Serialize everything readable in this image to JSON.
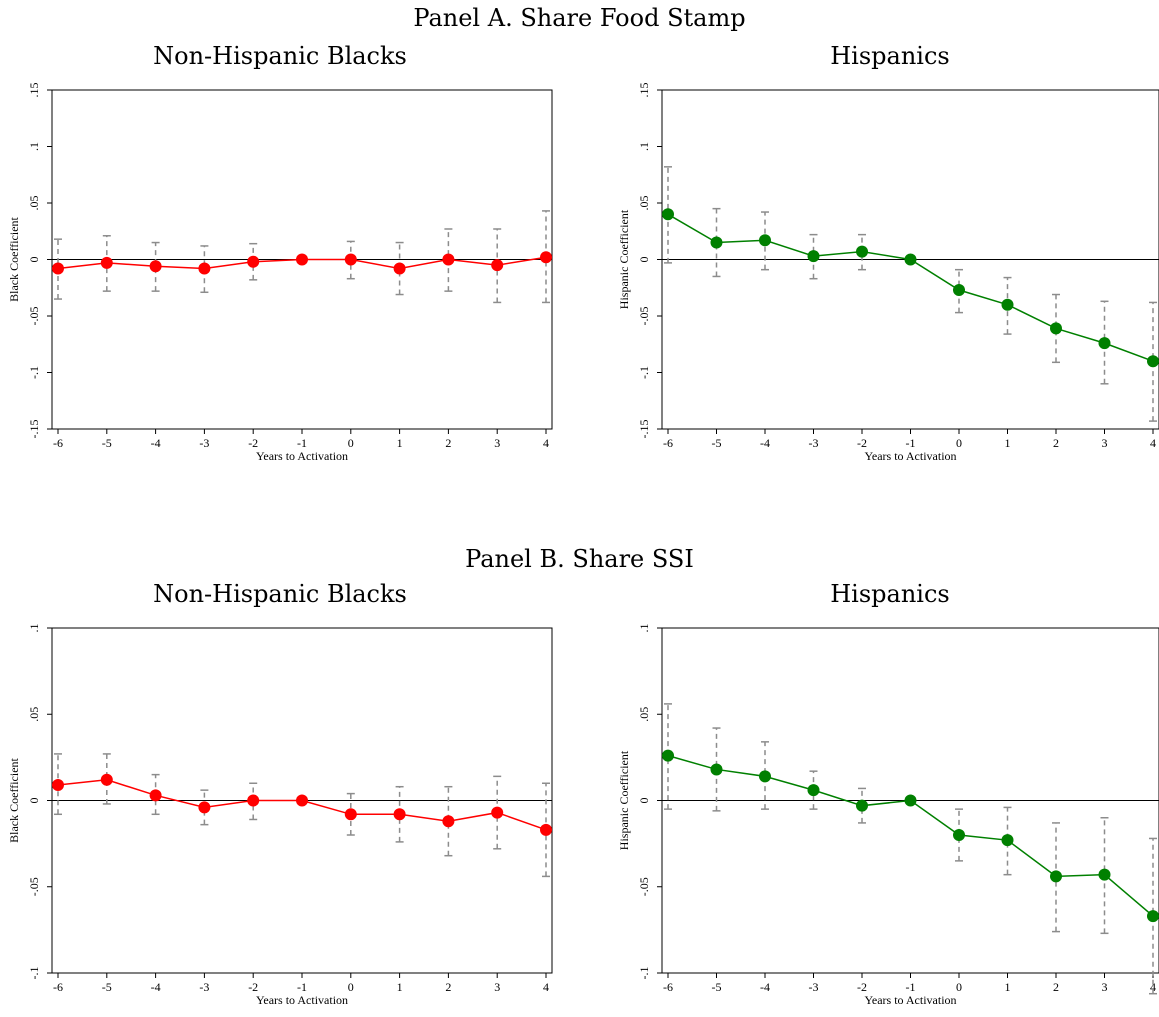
{
  "panels": [
    {
      "title": "Panel A. Share Food Stamp"
    },
    {
      "title": "Panel B. Share SSI"
    }
  ],
  "chart_data": [
    {
      "type": "scatter",
      "panel": "Panel A. Share Food Stamp",
      "title": "Non-Hispanic Blacks",
      "xlabel": "Years to Activation",
      "ylabel": "Black Coefficient",
      "x": [
        -6,
        -5,
        -4,
        -3,
        -2,
        -1,
        0,
        1,
        2,
        3,
        4
      ],
      "x_ticks": [
        "-6",
        "-5",
        "-4",
        "-3",
        "-2",
        "-1",
        "0",
        "1",
        "2",
        "3",
        "4"
      ],
      "y_ticks": [
        {
          "v": -0.15,
          "label": "-.15"
        },
        {
          "v": -0.1,
          "label": "-.1"
        },
        {
          "v": -0.05,
          "label": "-.05"
        },
        {
          "v": 0,
          "label": "0"
        },
        {
          "v": 0.05,
          "label": ".05"
        },
        {
          "v": 0.1,
          "label": ".1"
        },
        {
          "v": 0.15,
          "label": ".15"
        }
      ],
      "ylim": [
        -0.15,
        0.15
      ],
      "xlim": [
        -6,
        4
      ],
      "color": "#ff0000",
      "values": [
        -0.008,
        -0.003,
        -0.006,
        -0.008,
        -0.002,
        0.0,
        0.0,
        -0.008,
        0.0,
        -0.005,
        0.002
      ],
      "ci_low": [
        -0.035,
        -0.028,
        -0.028,
        -0.029,
        -0.018,
        0.0,
        -0.017,
        -0.031,
        -0.028,
        -0.038,
        -0.038
      ],
      "ci_high": [
        0.018,
        0.021,
        0.015,
        0.012,
        0.014,
        0.0,
        0.016,
        0.015,
        0.027,
        0.027,
        0.043
      ],
      "grid": false
    },
    {
      "type": "scatter",
      "panel": "Panel A. Share Food Stamp",
      "title": "Hispanics",
      "xlabel": "Years to Activation",
      "ylabel": "Hispanic Coefficient",
      "x": [
        -6,
        -5,
        -4,
        -3,
        -2,
        -1,
        0,
        1,
        2,
        3,
        4
      ],
      "x_ticks": [
        "-6",
        "-5",
        "-4",
        "-3",
        "-2",
        "-1",
        "0",
        "1",
        "2",
        "3",
        "4"
      ],
      "y_ticks": [
        {
          "v": -0.15,
          "label": "-.15"
        },
        {
          "v": -0.1,
          "label": "-.1"
        },
        {
          "v": -0.05,
          "label": "-.05"
        },
        {
          "v": 0,
          "label": "0"
        },
        {
          "v": 0.05,
          "label": ".05"
        },
        {
          "v": 0.1,
          "label": ".1"
        },
        {
          "v": 0.15,
          "label": ".15"
        }
      ],
      "ylim": [
        -0.15,
        0.15
      ],
      "xlim": [
        -6,
        4
      ],
      "color": "#008000",
      "values": [
        0.04,
        0.015,
        0.017,
        0.003,
        0.007,
        0.0,
        -0.027,
        -0.04,
        -0.061,
        -0.074,
        -0.09
      ],
      "ci_low": [
        -0.003,
        -0.015,
        -0.009,
        -0.017,
        -0.009,
        0.0,
        -0.047,
        -0.066,
        -0.091,
        -0.11,
        -0.143
      ],
      "ci_high": [
        0.082,
        0.045,
        0.042,
        0.022,
        0.022,
        0.0,
        -0.009,
        -0.016,
        -0.031,
        -0.037,
        -0.038
      ],
      "grid": false
    },
    {
      "type": "scatter",
      "panel": "Panel B. Share SSI",
      "title": "Non-Hispanic Blacks",
      "xlabel": "Years to Activation",
      "ylabel": "Black Coefficient",
      "x": [
        -6,
        -5,
        -4,
        -3,
        -2,
        -1,
        0,
        1,
        2,
        3,
        4
      ],
      "x_ticks": [
        "-6",
        "-5",
        "-4",
        "-3",
        "-2",
        "-1",
        "0",
        "1",
        "2",
        "3",
        "4"
      ],
      "y_ticks": [
        {
          "v": -0.1,
          "label": "-.1"
        },
        {
          "v": -0.05,
          "label": "-.05"
        },
        {
          "v": 0,
          "label": "0"
        },
        {
          "v": 0.05,
          "label": ".05"
        },
        {
          "v": 0.1,
          "label": ".1"
        }
      ],
      "ylim": [
        -0.1,
        0.1
      ],
      "xlim": [
        -6,
        4
      ],
      "color": "#ff0000",
      "values": [
        0.009,
        0.012,
        0.003,
        -0.004,
        0.0,
        0.0,
        -0.008,
        -0.008,
        -0.012,
        -0.007,
        -0.017
      ],
      "ci_low": [
        -0.008,
        -0.002,
        -0.008,
        -0.014,
        -0.011,
        0.0,
        -0.02,
        -0.024,
        -0.032,
        -0.028,
        -0.044
      ],
      "ci_high": [
        0.027,
        0.027,
        0.015,
        0.006,
        0.01,
        0.0,
        0.004,
        0.008,
        0.008,
        0.014,
        0.01
      ],
      "grid": false
    },
    {
      "type": "scatter",
      "panel": "Panel B. Share SSI",
      "title": "Hispanics",
      "xlabel": "Years to Activation",
      "ylabel": "Hispanic Coefficient",
      "x": [
        -6,
        -5,
        -4,
        -3,
        -2,
        -1,
        0,
        1,
        2,
        3,
        4
      ],
      "x_ticks": [
        "-6",
        "-5",
        "-4",
        "-3",
        "-2",
        "-1",
        "0",
        "1",
        "2",
        "3",
        "4"
      ],
      "y_ticks": [
        {
          "v": -0.1,
          "label": "-.1"
        },
        {
          "v": -0.05,
          "label": "-.05"
        },
        {
          "v": 0,
          "label": "0"
        },
        {
          "v": 0.05,
          "label": ".05"
        },
        {
          "v": 0.1,
          "label": ".1"
        }
      ],
      "ylim": [
        -0.1,
        0.1
      ],
      "xlim": [
        -6,
        4
      ],
      "color": "#008000",
      "values": [
        0.026,
        0.018,
        0.014,
        0.006,
        -0.003,
        0.0,
        -0.02,
        -0.023,
        -0.044,
        -0.043,
        -0.067
      ],
      "ci_low": [
        -0.005,
        -0.006,
        -0.005,
        -0.005,
        -0.013,
        0.0,
        -0.035,
        -0.043,
        -0.076,
        -0.077,
        -0.112
      ],
      "ci_high": [
        0.056,
        0.042,
        0.034,
        0.017,
        0.007,
        0.0,
        -0.005,
        -0.004,
        -0.013,
        -0.01,
        -0.022
      ],
      "grid": false
    }
  ]
}
